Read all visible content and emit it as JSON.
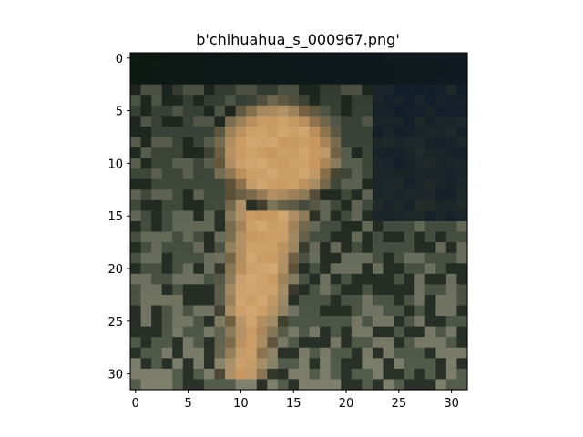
{
  "figure": {
    "title": "b'chihuahua_s_000967.png'"
  },
  "image": {
    "description_colors": {
      "background_dark": "#0e1812",
      "dog_fur": "#c7975f",
      "dog_fur_light": "#d9b07c",
      "foliage_dark": "#2a3128",
      "foliage_mid": "#545c4c",
      "foliage_light": "#7e806c",
      "sky_blue_dark": "#0f1b2a"
    },
    "pixel_grid": {
      "rows": 32,
      "cols": 32
    }
  },
  "axes": {
    "xlim": [
      -0.5,
      31.5
    ],
    "ylim": [
      31.5,
      -0.5
    ],
    "x_ticks": [
      0,
      5,
      10,
      15,
      20,
      25,
      30
    ],
    "y_ticks": [
      0,
      5,
      10,
      15,
      20,
      25,
      30
    ]
  }
}
